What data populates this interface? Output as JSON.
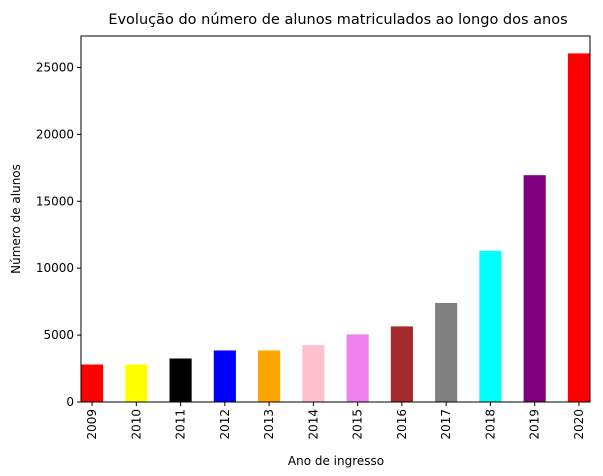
{
  "chart_data": {
    "type": "bar",
    "title": "Evolução do número de alunos matriculados ao longo dos anos",
    "xlabel": "Ano de ingresso",
    "ylabel": "Número de alunos",
    "categories": [
      "2009",
      "2010",
      "2011",
      "2012",
      "2013",
      "2014",
      "2015",
      "2016",
      "2017",
      "2018",
      "2019",
      "2020"
    ],
    "values": [
      2800,
      2800,
      3250,
      3850,
      3850,
      4250,
      5050,
      5650,
      7400,
      11300,
      16950,
      26050
    ],
    "colors": [
      "#ff0000",
      "#ffff00",
      "#000000",
      "#0000ff",
      "#ffa500",
      "#ffc0cb",
      "#ee82ee",
      "#a52a2a",
      "#808080",
      "#00ffff",
      "#800080",
      "#ff0000"
    ],
    "ylim": [
      0,
      27350
    ],
    "yticks": [
      0,
      5000,
      10000,
      15000,
      20000,
      25000
    ],
    "ytick_labels": [
      "0",
      "5000",
      "10000",
      "15000",
      "20000",
      "25000"
    ],
    "grid": false,
    "legend": "none"
  }
}
